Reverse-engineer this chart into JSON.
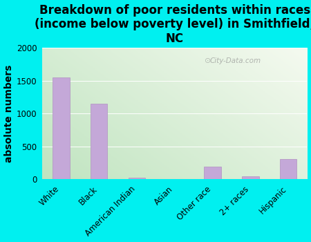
{
  "title": "Breakdown of poor residents within races\n(income below poverty level) in Smithfield,\nNC",
  "categories": [
    "White",
    "Black",
    "American Indian",
    "Asian",
    "Other race",
    "2+ races",
    "Hispanic"
  ],
  "values": [
    1555,
    1155,
    30,
    5,
    195,
    50,
    305
  ],
  "bar_color": "#c4a8d8",
  "bar_edge_color": "#b090c0",
  "ylabel": "absolute numbers",
  "ylim": [
    0,
    2000
  ],
  "yticks": [
    0,
    500,
    1000,
    1500,
    2000
  ],
  "background_color": "#00f0f0",
  "plot_bg_topleft": "#d4ecd4",
  "plot_bg_bottomleft": "#c0e4c0",
  "plot_bg_topright": "#f5faf0",
  "plot_bg_bottomright": "#eaf5ea",
  "watermark": "City-Data.com",
  "title_fontsize": 12,
  "ylabel_fontsize": 10,
  "tick_fontsize": 8.5
}
